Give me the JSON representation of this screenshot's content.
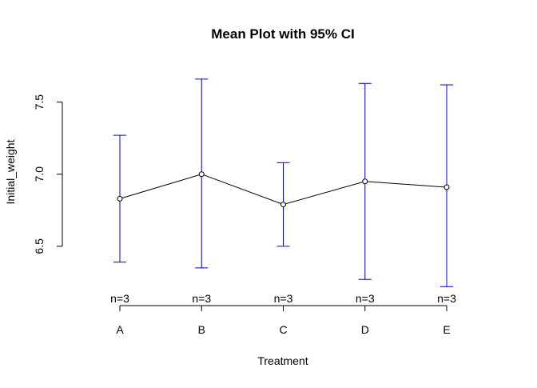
{
  "chart_data": {
    "type": "line",
    "title": "Mean Plot with 95% CI",
    "xlabel": "Treatment",
    "ylabel": "Initial_weight",
    "categories": [
      "A",
      "B",
      "C",
      "D",
      "E"
    ],
    "means": [
      6.83,
      7.0,
      6.79,
      6.95,
      6.91
    ],
    "ci_lower": [
      6.39,
      6.35,
      6.5,
      6.27,
      6.22
    ],
    "ci_upper": [
      7.27,
      7.66,
      7.08,
      7.63,
      7.62
    ],
    "n_labels": [
      "n=3",
      "n=3",
      "n=3",
      "n=3",
      "n=3"
    ],
    "y_ticks": [
      6.5,
      7.0,
      7.5
    ],
    "y_tick_labels": [
      "6.5",
      "7.0",
      "7.5"
    ],
    "ylim": [
      6.155,
      7.82
    ],
    "grid": false,
    "line_color": "#000000",
    "ci_color": "#0000cc",
    "point_style": "open-circle"
  }
}
